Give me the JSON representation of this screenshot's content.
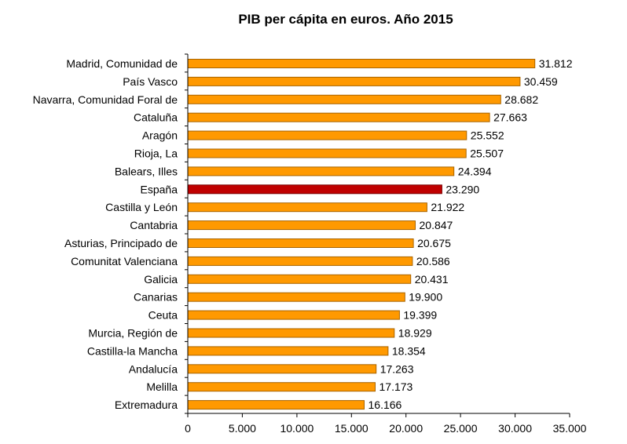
{
  "chart_data": {
    "type": "bar",
    "orientation": "horizontal",
    "title": "PIB per cápita en euros. Año 2015",
    "xlabel": "",
    "ylabel": "",
    "xlim": [
      0,
      35000
    ],
    "x_ticks": [
      0,
      5000,
      10000,
      15000,
      20000,
      25000,
      30000,
      35000
    ],
    "x_tick_labels": [
      "0",
      "5.000",
      "10.000",
      "15.000",
      "20.000",
      "25.000",
      "30.000",
      "35.000"
    ],
    "grid": false,
    "legend": "none",
    "categories": [
      "Madrid, Comunidad de",
      "País Vasco",
      "Navarra, Comunidad Foral de",
      "Cataluña",
      "Aragón",
      "Rioja, La",
      "Balears, Illes",
      "España",
      "Castilla y León",
      "Cantabria",
      "Asturias, Principado de",
      "Comunitat Valenciana",
      "Galicia",
      "Canarias",
      "Ceuta",
      "Murcia, Región de",
      "Castilla-la Mancha",
      "Andalucía",
      "Melilla",
      "Extremadura"
    ],
    "values": [
      31812,
      30459,
      28682,
      27663,
      25552,
      25507,
      24394,
      23290,
      21922,
      20847,
      20675,
      20586,
      20431,
      19900,
      19399,
      18929,
      18354,
      17263,
      17173,
      16166
    ],
    "value_labels": [
      "31.812",
      "30.459",
      "28.682",
      "27.663",
      "25.552",
      "25.507",
      "24.394",
      "23.290",
      "21.922",
      "20.847",
      "20.675",
      "20.586",
      "20.431",
      "19.900",
      "19.399",
      "18.929",
      "18.354",
      "17.263",
      "17.173",
      "16.166"
    ],
    "highlight_category": "España",
    "colors": {
      "bar": "#FF9900",
      "bar_border": "#A86400",
      "highlight": "#C00000",
      "highlight_border": "#7A0000",
      "axis": "#000000"
    }
  }
}
